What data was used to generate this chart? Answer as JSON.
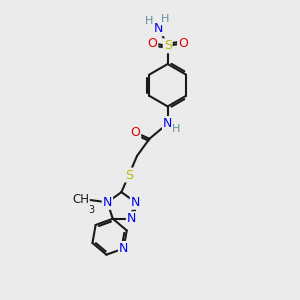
{
  "bg_color": "#ebebeb",
  "bond_color": "#1a1a1a",
  "bond_width": 1.5,
  "atom_colors": {
    "C": "#1a1a1a",
    "H": "#5f8fa0",
    "N": "#0000ee",
    "O": "#dd0000",
    "S": "#bbbb00"
  },
  "font_size": 8.5
}
